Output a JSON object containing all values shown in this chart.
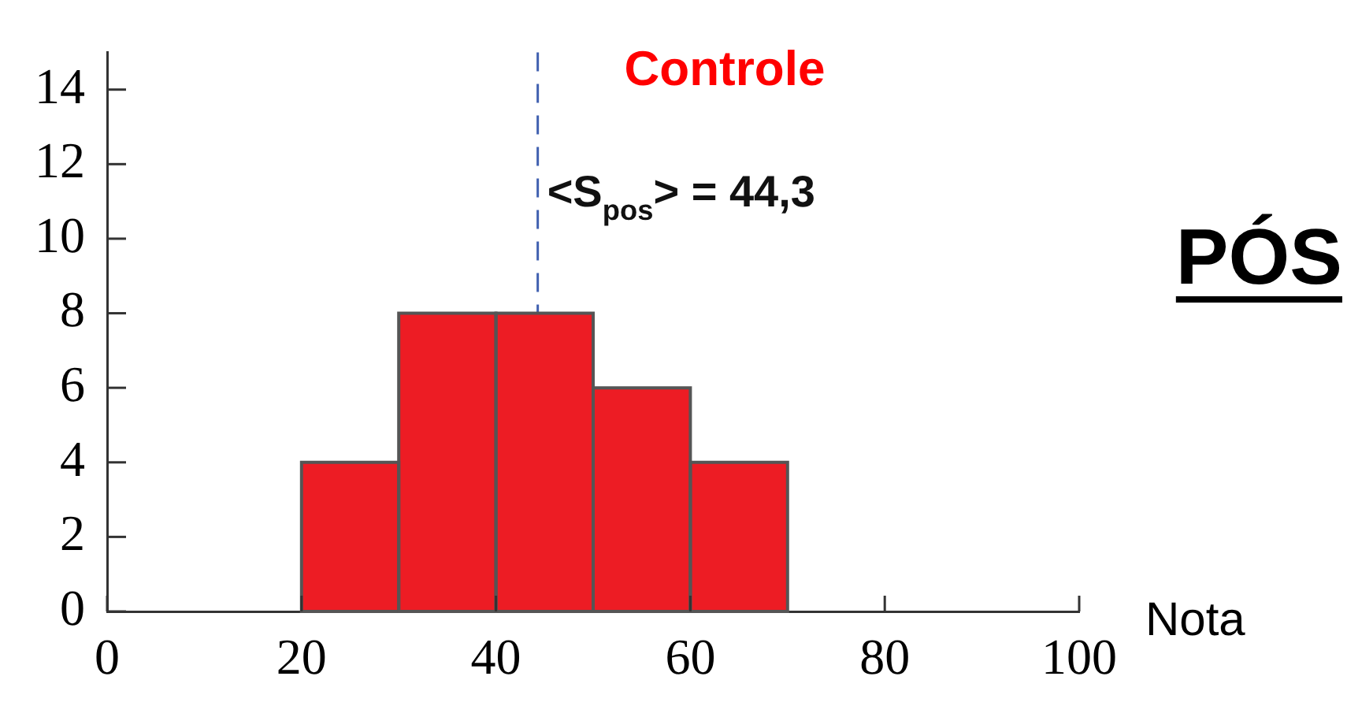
{
  "chart_data": {
    "type": "histogram",
    "title": "Controle",
    "xlabel": "Nota",
    "bins": [
      20,
      30,
      40,
      50,
      60,
      70
    ],
    "values": [
      4,
      8,
      8,
      6,
      4
    ],
    "color": "#ed1c24",
    "xlim": [
      0,
      100
    ],
    "xticks": [
      0,
      20,
      40,
      60,
      80,
      100
    ],
    "ylim": [
      0,
      15
    ],
    "yticks": [
      0,
      2,
      4,
      6,
      8,
      10,
      12,
      14
    ],
    "ref_lines": [
      {
        "axis": "x",
        "value": 44.3,
        "label": "<S$_{pos}$> = 44,3",
        "color": "#4060b0",
        "line_style": "dashed"
      }
    ],
    "annotations": [
      "PÓS"
    ],
    "grid": false,
    "legend": false
  }
}
